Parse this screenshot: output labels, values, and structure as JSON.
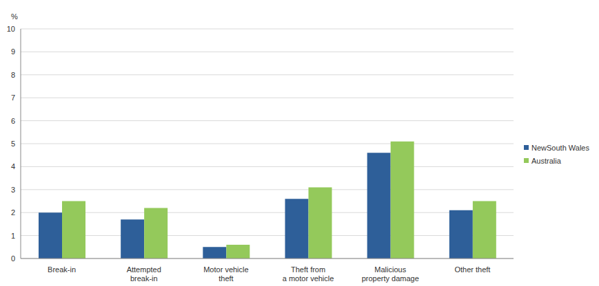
{
  "chart_data": {
    "type": "bar",
    "y_label": "%",
    "categories": [
      "Break-in",
      "Attempted\nbreak-in",
      "Motor vehicle\ntheft",
      "Theft from\na motor vehicle",
      "Malicious\nproperty damage",
      "Other theft"
    ],
    "series": [
      {
        "name": "NewSouth Wales",
        "color": "#2e5f99",
        "values": [
          2.0,
          1.7,
          0.5,
          2.6,
          4.6,
          2.1
        ]
      },
      {
        "name": "Australia",
        "color": "#94c95b",
        "values": [
          2.5,
          2.2,
          0.6,
          3.1,
          5.1,
          2.5
        ]
      }
    ],
    "ylim": [
      0,
      10
    ],
    "yticks": [
      0,
      1,
      2,
      3,
      4,
      5,
      6,
      7,
      8,
      9,
      10
    ],
    "grid": true,
    "legend": "right"
  }
}
